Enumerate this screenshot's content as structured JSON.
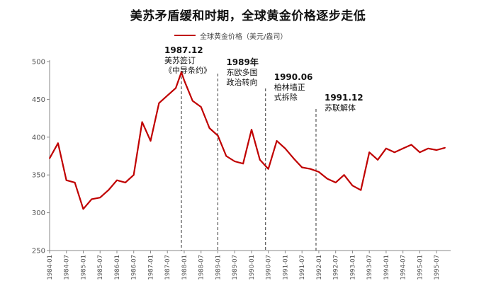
{
  "chart_data": {
    "type": "line",
    "title": "美苏矛盾缓和时期，全球黄金价格逐步走低",
    "legend_position": "top",
    "grid": false,
    "series": [
      {
        "name": "全球黄金价格（美元/盎司）",
        "color": "#c00000",
        "x": [
          "1984-01",
          "1984-04",
          "1984-07",
          "1984-10",
          "1985-01",
          "1985-04",
          "1985-07",
          "1985-10",
          "1986-01",
          "1986-04",
          "1986-07",
          "1986-10",
          "1987-01",
          "1987-04",
          "1987-07",
          "1987-10",
          "1987-12",
          "1988-01",
          "1988-04",
          "1988-07",
          "1988-10",
          "1989-01",
          "1989-04",
          "1989-07",
          "1989-10",
          "1990-01",
          "1990-04",
          "1990-07",
          "1990-10",
          "1991-01",
          "1991-04",
          "1991-07",
          "1991-10",
          "1992-01",
          "1992-04",
          "1992-07",
          "1992-10",
          "1993-01",
          "1993-04",
          "1993-07",
          "1993-10",
          "1994-01",
          "1994-04",
          "1994-07",
          "1994-10",
          "1995-01",
          "1995-04",
          "1995-07",
          "1995-10"
        ],
        "values": [
          372,
          392,
          343,
          340,
          305,
          318,
          320,
          330,
          343,
          340,
          350,
          420,
          395,
          445,
          455,
          465,
          486,
          475,
          448,
          440,
          412,
          402,
          375,
          368,
          365,
          410,
          370,
          358,
          395,
          385,
          372,
          360,
          358,
          354,
          345,
          340,
          350,
          336,
          330,
          380,
          370,
          385,
          380,
          385,
          390,
          380,
          385,
          383,
          386
        ]
      }
    ],
    "x_ticks": [
      "1984-01",
      "1984-07",
      "1985-01",
      "1985-07",
      "1986-01",
      "1986-07",
      "1987-01",
      "1987-07",
      "1988-01",
      "1988-07",
      "1989-01",
      "1989-07",
      "1990-01",
      "1990-07",
      "1991-01",
      "1991-07",
      "1992-01",
      "1992-07",
      "1993-01",
      "1993-07",
      "1994-01",
      "1994-07",
      "1995-01",
      "1995-07"
    ],
    "y_ticks": [
      250,
      300,
      350,
      400,
      450,
      500
    ],
    "ylim": [
      250,
      500
    ],
    "annotations": [
      {
        "x": "1987-12",
        "lines": [
          "1987.12",
          "美苏签订",
          "《中导条约》"
        ]
      },
      {
        "x": "1989-01",
        "lines": [
          "1989年",
          "东欧多国",
          "政治转向"
        ]
      },
      {
        "x": "1990-06",
        "lines": [
          "1990.06",
          "柏林墙正",
          "式拆除"
        ]
      },
      {
        "x": "1991-12",
        "lines": [
          "1991.12",
          "苏联解体"
        ]
      }
    ]
  }
}
